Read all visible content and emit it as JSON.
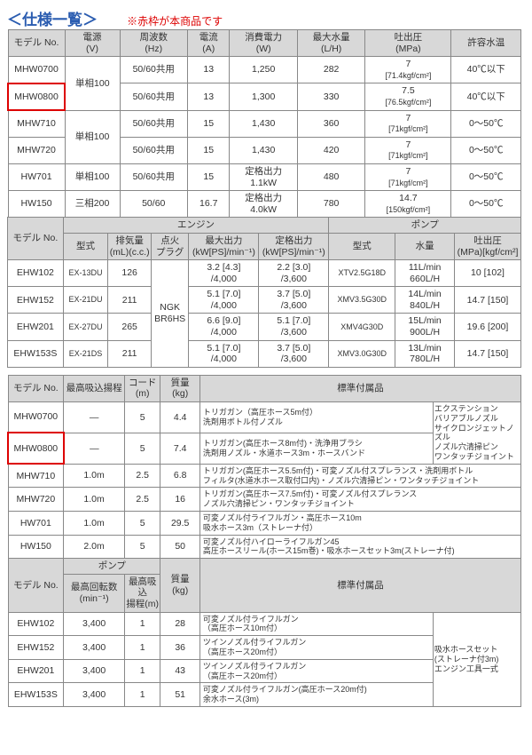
{
  "title": "＜仕様一覧＞",
  "note": "※赤枠が本商品です",
  "t1": {
    "headers": [
      "モデル No.",
      "電源\n(V)",
      "周波数\n(Hz)",
      "電流\n(A)",
      "消費電力\n(W)",
      "最大水量\n(L/H)",
      "吐出圧\n(MPa)",
      "許容水温"
    ],
    "rows": [
      {
        "model": "MHW0700",
        "ps": "単相100",
        "ps_span": 2,
        "hz": "50/60共用",
        "a": "13",
        "w": "1,250",
        "lh": "282",
        "mpa": "7",
        "mpa2": "[71.4kgf/cm²]",
        "temp": "40℃以下",
        "hl": false
      },
      {
        "model": "MHW0800",
        "hz": "50/60共用",
        "a": "13",
        "w": "1,300",
        "lh": "330",
        "mpa": "7.5",
        "mpa2": "[76.5kgf/cm²]",
        "temp": "40℃以下",
        "hl": true
      },
      {
        "model": "MHW710",
        "ps": "単相100",
        "ps_span": 2,
        "hz": "50/60共用",
        "a": "15",
        "w": "1,430",
        "lh": "360",
        "mpa": "7",
        "mpa2": "[71kgf/cm²]",
        "temp": "0～50℃",
        "hl": false
      },
      {
        "model": "MHW720",
        "hz": "50/60共用",
        "a": "15",
        "w": "1,430",
        "lh": "420",
        "mpa": "7",
        "mpa2": "[71kgf/cm²]",
        "temp": "0～50℃",
        "hl": false
      },
      {
        "model": "HW701",
        "ps": "単相100",
        "ps_span": 1,
        "hz": "50/60共用",
        "a": "15",
        "w": "定格出力\n1.1kW",
        "lh": "480",
        "mpa": "7",
        "mpa2": "[71kgf/cm²]",
        "temp": "0～50℃",
        "hl": false
      },
      {
        "model": "HW150",
        "ps": "三相200",
        "ps_span": 1,
        "hz": "50/60",
        "a": "16.7",
        "w": "定格出力\n4.0kW",
        "lh": "780",
        "mpa": "14.7",
        "mpa2": "[150kgf/cm²]",
        "temp": "0～50℃",
        "hl": false
      }
    ],
    "sub1": [
      "モデル No.",
      "型式",
      "排気量\n(mL)(c.c.)",
      "点火\nプラグ",
      "最大出力\n(kW[PS]/min⁻¹)",
      "定格出力\n(kW[PS]/min⁻¹)",
      "型式",
      "水量",
      "吐出圧\n(MPa)[kgf/cm²]"
    ],
    "group1": "エンジン",
    "group2": "ポンプ",
    "erows": [
      {
        "model": "EHW102",
        "type": "EX-13DU",
        "cc": "126",
        "plug": "NGK\nBR6HS",
        "plug_span": 4,
        "max": "3.2 [4.3]\n/4,000",
        "rated": "2.2 [3.0]\n/3,600",
        "ptype": "XTV2.5G18D",
        "flow": "11L/min\n660L/H",
        "press": "10 [102]"
      },
      {
        "model": "EHW152",
        "type": "EX-21DU",
        "cc": "211",
        "max": "5.1 [7.0]\n/4,000",
        "rated": "3.7 [5.0]\n/3,600",
        "ptype": "XMV3.5G30D",
        "flow": "14L/min\n840L/H",
        "press": "14.7 [150]"
      },
      {
        "model": "EHW201",
        "type": "EX-27DU",
        "cc": "265",
        "max": "6.6 [9.0]\n/4,000",
        "rated": "5.1 [7.0]\n/3,600",
        "ptype": "XMV4G30D",
        "flow": "15L/min\n900L/H",
        "press": "19.6 [200]"
      },
      {
        "model": "EHW153S",
        "type": "EX-21DS",
        "cc": "211",
        "max": "5.1 [7.0]\n/4,000",
        "rated": "3.7 [5.0]\n/3,600",
        "ptype": "XMV3.0G30D",
        "flow": "13L/min\n780L/H",
        "press": "14.7 [150]"
      }
    ]
  },
  "t2": {
    "headers": [
      "モデル No.",
      "最高吸込揚程",
      "コード\n(m)",
      "質量\n(kg)",
      "標準付属品"
    ],
    "rows": [
      {
        "model": "MHW0700",
        "lift": "—",
        "cord": "5",
        "kg": "4.4",
        "acc": "トリガガン（高圧ホース5m付）\n洗剤用ボトル付ノズル",
        "extra": "エクステンション\nバリアブルノズル\nサイクロンジェットノズル\nノズル穴清掃ピン\nワンタッチジョイント",
        "extra_span": 2,
        "hl": false
      },
      {
        "model": "MHW0800",
        "lift": "—",
        "cord": "5",
        "kg": "7.4",
        "acc": "トリガガン(高圧ホース8m付)・洗浄用ブラシ\n洗剤用ノズル・水道ホース3m・ホースバンド",
        "hl": true
      },
      {
        "model": "MHW710",
        "lift": "1.0m",
        "cord": "2.5",
        "kg": "6.8",
        "acc": "トリガガン(高圧ホース5.5m付)・可変ノズル付スプレランス・洗剤用ボトル\nフィルタ(水道水ホース取付口内)・ノズル穴清掃ピン・ワンタッチジョイント",
        "span": 2,
        "hl": false
      },
      {
        "model": "MHW720",
        "lift": "1.0m",
        "cord": "2.5",
        "kg": "16",
        "acc": "トリガガン(高圧ホース7.5m付)・可変ノズル付スプレランス\nノズル穴清掃ピン・ワンタッチジョイント",
        "span": 2,
        "hl": false
      },
      {
        "model": "HW701",
        "lift": "1.0m",
        "cord": "5",
        "kg": "29.5",
        "acc": "可変ノズル付ライフルガン・高圧ホース10m\n吸水ホース3m（ストレーナ付）",
        "span": 2,
        "hl": false
      },
      {
        "model": "HW150",
        "lift": "2.0m",
        "cord": "5",
        "kg": "50",
        "acc": "可変ノズル付ハイローライフルガン45\n高圧ホースリール(ホース15m巻)・吸水ホースセット3m(ストレーナ付)",
        "span": 2,
        "hl": false
      }
    ],
    "sub2": [
      "モデル No.",
      "最高回転数\n(min⁻¹)",
      "最高吸込\n揚程(m)",
      "質量\n(kg)",
      "標準付属品"
    ],
    "group": "ポンプ",
    "erows": [
      {
        "model": "EHW102",
        "rpm": "3,400",
        "lift": "1",
        "kg": "28",
        "acc": "可変ノズル付ライフルガン\n（高圧ホース10m付）",
        "extra": "吸水ホースセット\n(ストレーナ付3m)\nエンジン工具一式",
        "extra_span": 4
      },
      {
        "model": "EHW152",
        "rpm": "3,400",
        "lift": "1",
        "kg": "36",
        "acc": "ツインノズル付ライフルガン\n（高圧ホース20m付）"
      },
      {
        "model": "EHW201",
        "rpm": "3,400",
        "lift": "1",
        "kg": "43",
        "acc": "ツインノズル付ライフルガン\n（高圧ホース20m付）"
      },
      {
        "model": "EHW153S",
        "rpm": "3,400",
        "lift": "1",
        "kg": "51",
        "acc": "可変ノズル付ライフルガン(高圧ホース20m付)\n余水ホース(3m)"
      }
    ]
  }
}
